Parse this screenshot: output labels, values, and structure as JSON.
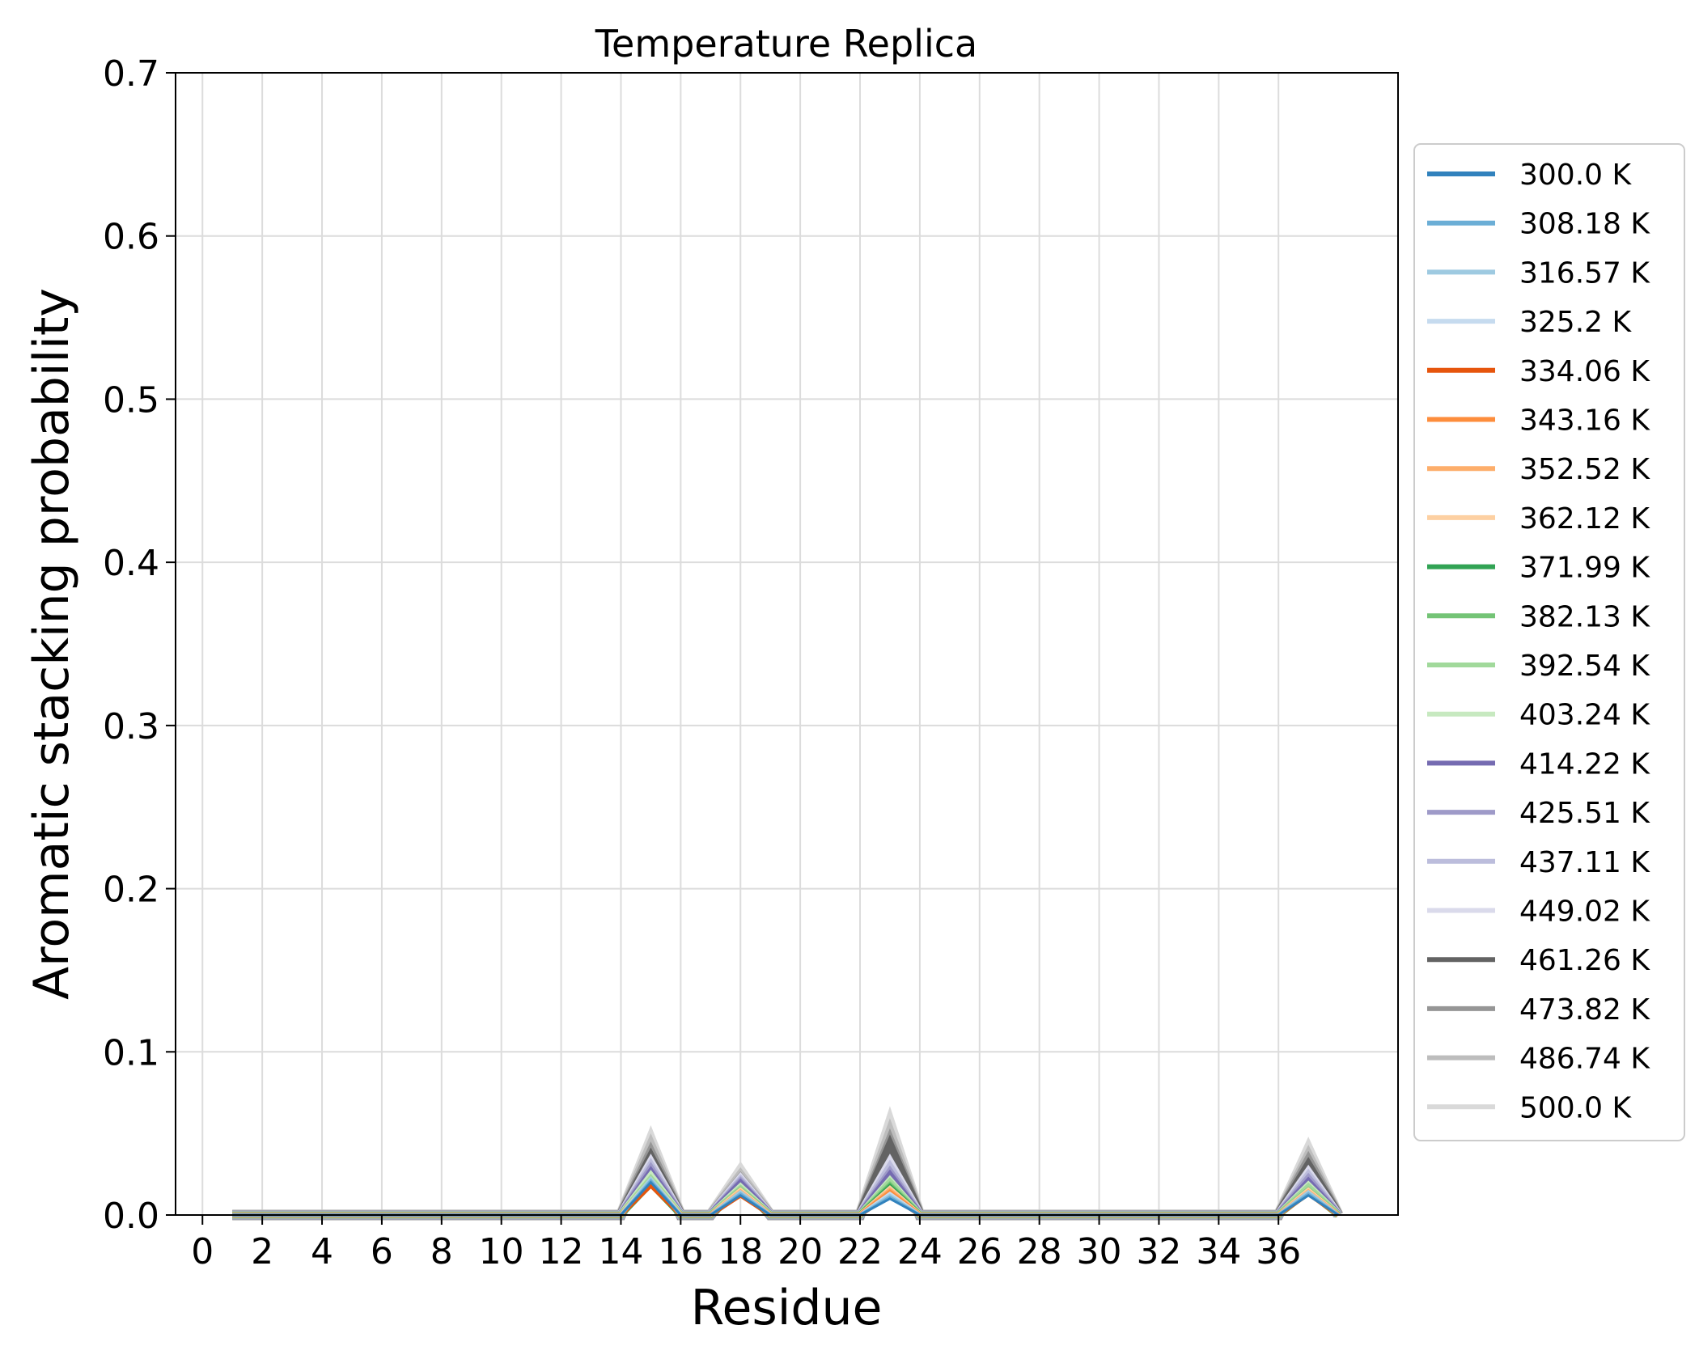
{
  "chart_data": {
    "type": "line",
    "title": "Temperature Replica",
    "xlabel": "Residue",
    "ylabel": "Aromatic stacking probability",
    "xlim": [
      -0.9,
      40.0
    ],
    "ylim": [
      0.0,
      0.7
    ],
    "xticks": [
      0,
      2,
      4,
      6,
      8,
      10,
      12,
      14,
      16,
      18,
      20,
      22,
      24,
      26,
      28,
      30,
      32,
      34,
      36
    ],
    "yticks": [
      0.0,
      0.1,
      0.2,
      0.3,
      0.4,
      0.5,
      0.6,
      0.7
    ],
    "ytick_labels": [
      "0.0",
      "0.1",
      "0.2",
      "0.3",
      "0.4",
      "0.5",
      "0.6",
      "0.7"
    ],
    "grid": true,
    "legend_position": "right, outside plot",
    "x": [
      1,
      2,
      3,
      4,
      5,
      6,
      7,
      8,
      9,
      10,
      11,
      12,
      13,
      14,
      15,
      16,
      17,
      18,
      19,
      20,
      21,
      22,
      23,
      24,
      25,
      26,
      27,
      28,
      29,
      30,
      31,
      32,
      33,
      34,
      35,
      36,
      37,
      38
    ],
    "peak_residues": [
      15,
      18,
      23,
      37
    ],
    "series": [
      {
        "name": "300.0 K",
        "color": "#3182bd",
        "peaks": [
          0.02,
          0.012,
          0.01,
          0.012
        ]
      },
      {
        "name": "308.18 K",
        "color": "#6baed6",
        "peaks": [
          0.021,
          0.013,
          0.011,
          0.013
        ]
      },
      {
        "name": "316.57 K",
        "color": "#9ecae1",
        "peaks": [
          0.022,
          0.014,
          0.012,
          0.014
        ]
      },
      {
        "name": "325.2 K",
        "color": "#c6dbef",
        "peaks": [
          0.022,
          0.014,
          0.013,
          0.014
        ]
      },
      {
        "name": "334.06 K",
        "color": "#e6550d",
        "peaks": [
          0.018,
          0.012,
          0.012,
          0.013
        ]
      },
      {
        "name": "343.16 K",
        "color": "#fd8d3c",
        "peaks": [
          0.019,
          0.013,
          0.014,
          0.013
        ]
      },
      {
        "name": "352.52 K",
        "color": "#fdae6b",
        "peaks": [
          0.02,
          0.014,
          0.015,
          0.014
        ]
      },
      {
        "name": "362.12 K",
        "color": "#fdd0a2",
        "peaks": [
          0.021,
          0.015,
          0.016,
          0.015
        ]
      },
      {
        "name": "371.99 K",
        "color": "#31a354",
        "peaks": [
          0.019,
          0.014,
          0.017,
          0.014
        ]
      },
      {
        "name": "382.13 K",
        "color": "#74c476",
        "peaks": [
          0.02,
          0.015,
          0.018,
          0.015
        ]
      },
      {
        "name": "392.54 K",
        "color": "#a1d99b",
        "peaks": [
          0.022,
          0.016,
          0.02,
          0.017
        ]
      },
      {
        "name": "403.24 K",
        "color": "#c7e9c0",
        "peaks": [
          0.024,
          0.017,
          0.021,
          0.018
        ]
      },
      {
        "name": "414.22 K",
        "color": "#756bb1",
        "peaks": [
          0.026,
          0.019,
          0.024,
          0.02
        ]
      },
      {
        "name": "425.51 K",
        "color": "#9e9ac8",
        "peaks": [
          0.028,
          0.02,
          0.026,
          0.022
        ]
      },
      {
        "name": "437.11 K",
        "color": "#bcbddc",
        "peaks": [
          0.03,
          0.021,
          0.029,
          0.024
        ]
      },
      {
        "name": "449.02 K",
        "color": "#dadaeb",
        "peaks": [
          0.032,
          0.022,
          0.032,
          0.026
        ]
      },
      {
        "name": "461.26 K",
        "color": "#636363",
        "peaks": [
          0.035,
          0.02,
          0.042,
          0.03
        ]
      },
      {
        "name": "473.82 K",
        "color": "#969696",
        "peaks": [
          0.038,
          0.022,
          0.045,
          0.033
        ]
      },
      {
        "name": "486.74 K",
        "color": "#bdbdbd",
        "peaks": [
          0.042,
          0.024,
          0.05,
          0.036
        ]
      },
      {
        "name": "500.0 K",
        "color": "#d9d9d9",
        "peaks": [
          0.046,
          0.027,
          0.056,
          0.04
        ]
      }
    ]
  }
}
